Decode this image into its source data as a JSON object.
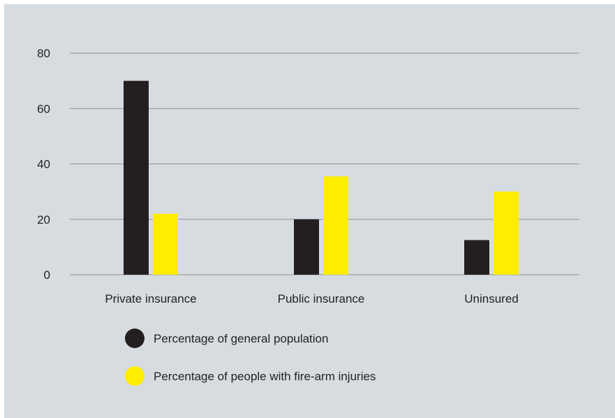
{
  "chart_data": {
    "type": "bar",
    "title": "",
    "xlabel": "",
    "ylabel": "",
    "categories": [
      "Private insurance",
      "Public insurance",
      "Uninsured"
    ],
    "series": [
      {
        "name": "Percentage of general population",
        "color": "#231f20",
        "values": [
          70,
          20,
          12.5
        ]
      },
      {
        "name": "Percentage of people with fire-arm injuries",
        "color": "#ffed00",
        "values": [
          22,
          35.5,
          30
        ]
      }
    ],
    "ylim": [
      0,
      80
    ],
    "yticks": [
      "0",
      "20",
      "40",
      "60",
      "80"
    ],
    "grid": true,
    "legend_position": "bottom-left"
  }
}
